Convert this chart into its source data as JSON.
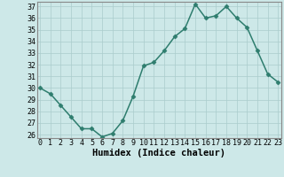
{
  "x": [
    0,
    1,
    2,
    3,
    4,
    5,
    6,
    7,
    8,
    9,
    10,
    11,
    12,
    13,
    14,
    15,
    16,
    17,
    18,
    19,
    20,
    21,
    22,
    23
  ],
  "y": [
    30,
    29.5,
    28.5,
    27.5,
    26.5,
    26.5,
    25.8,
    26.1,
    27.2,
    29.3,
    31.9,
    32.2,
    33.2,
    34.4,
    35.1,
    37.2,
    36.0,
    36.2,
    37.0,
    36.0,
    35.2,
    33.2,
    31.2,
    30.5
  ],
  "line_color": "#2e7d6e",
  "marker": "D",
  "marker_size": 2.5,
  "bg_color": "#cde8e8",
  "grid_color": "#aacccc",
  "xlabel": "Humidex (Indice chaleur)",
  "ylim": [
    26,
    37
  ],
  "xlim": [
    0,
    23
  ],
  "yticks": [
    26,
    27,
    28,
    29,
    30,
    31,
    32,
    33,
    34,
    35,
    36,
    37
  ],
  "xticks": [
    0,
    1,
    2,
    3,
    4,
    5,
    6,
    7,
    8,
    9,
    10,
    11,
    12,
    13,
    14,
    15,
    16,
    17,
    18,
    19,
    20,
    21,
    22,
    23
  ],
  "xlabel_fontsize": 7.5,
  "tick_fontsize": 6.0,
  "line_width": 1.1,
  "spine_color": "#888888"
}
